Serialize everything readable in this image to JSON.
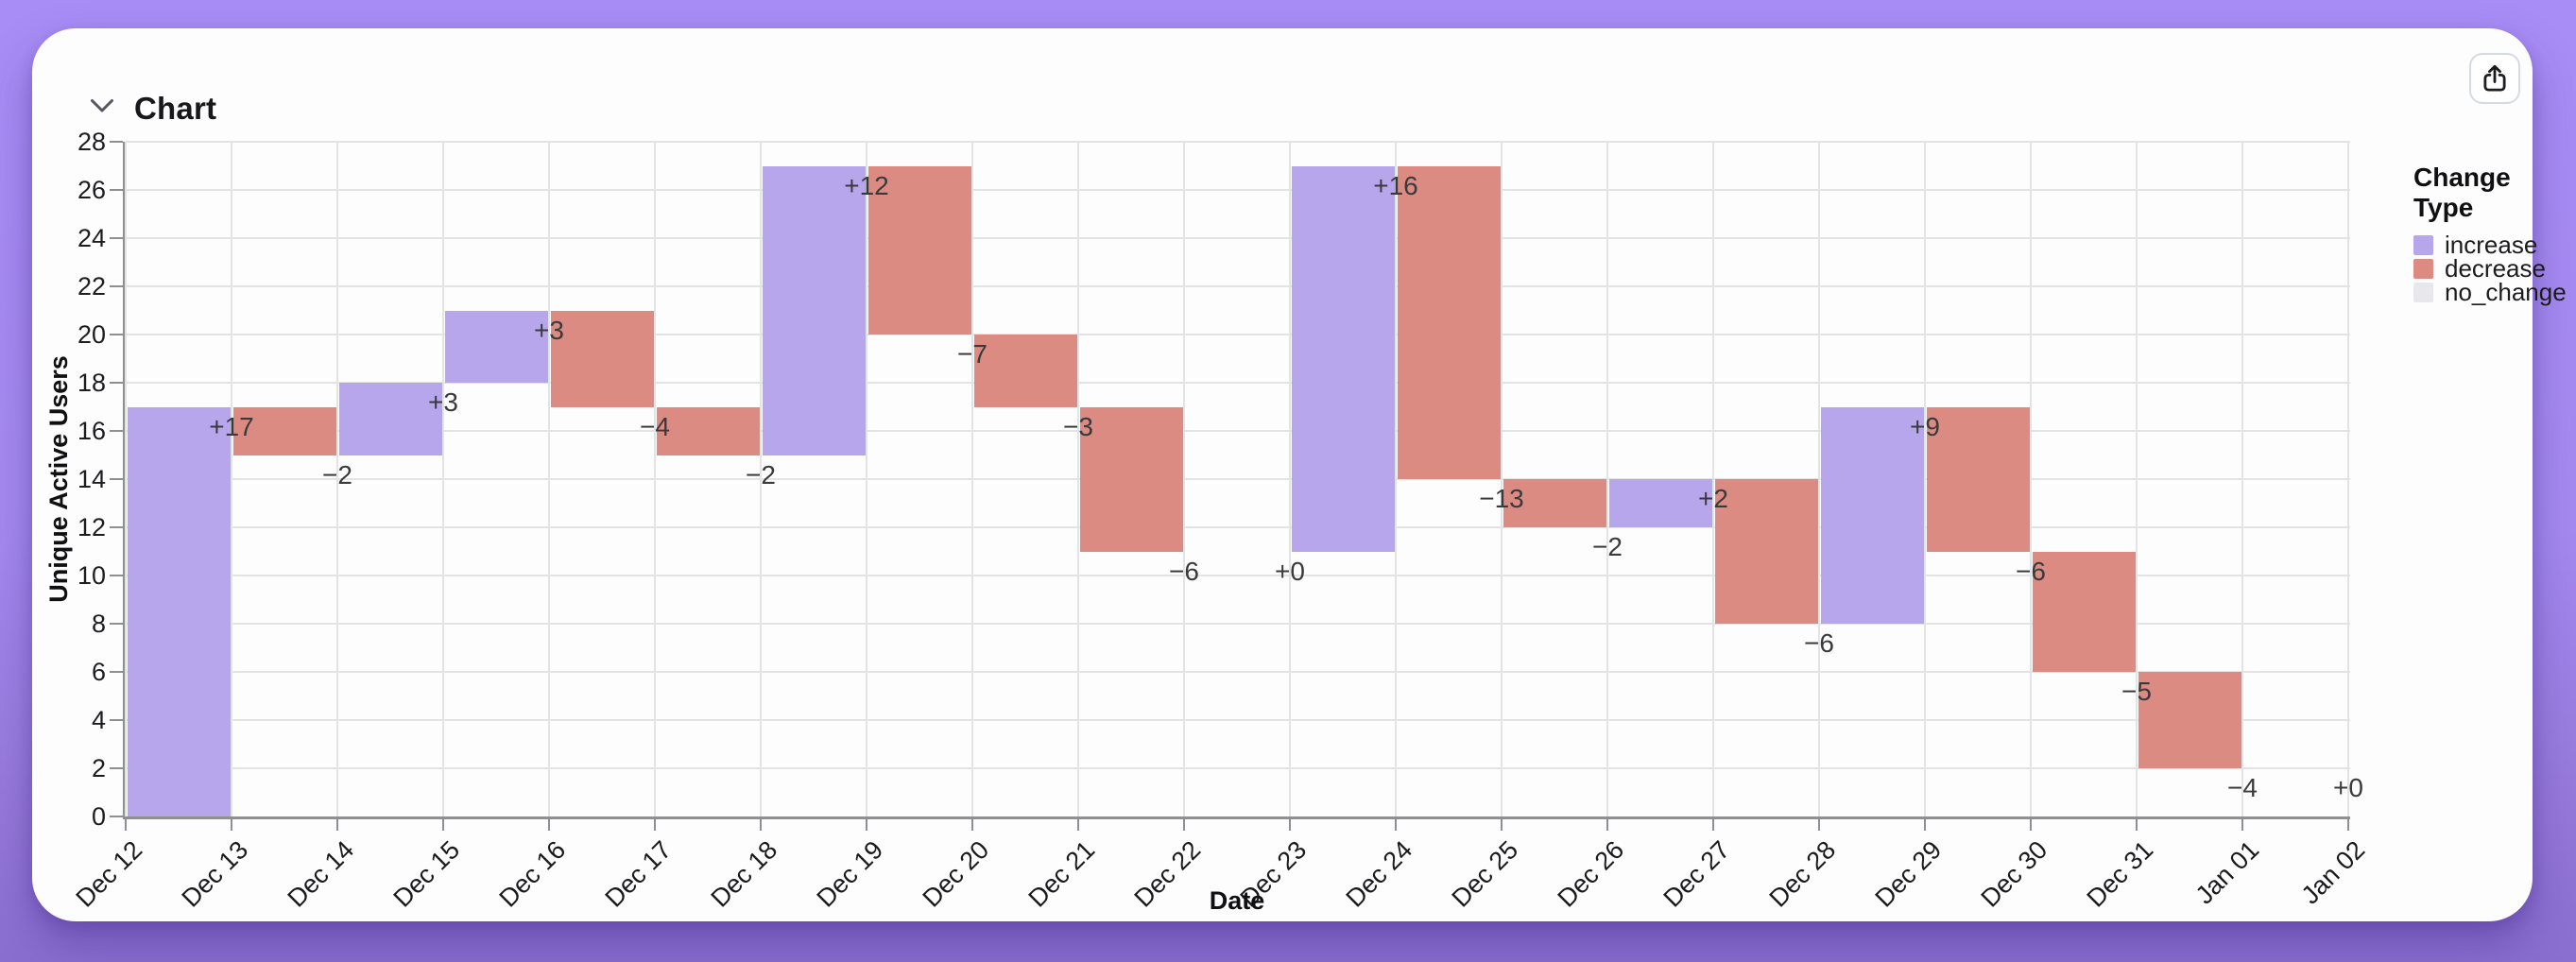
{
  "header": {
    "title": "Chart"
  },
  "chart_data": {
    "type": "bar",
    "subtype": "waterfall",
    "title": "",
    "xlabel": "Date",
    "ylabel": "Unique Active Users",
    "ylim": [
      0,
      28
    ],
    "ytick_step": 2,
    "grid": true,
    "x_ticks": [
      "Dec 12",
      "Dec 13",
      "Dec 14",
      "Dec 15",
      "Dec 16",
      "Dec 17",
      "Dec 18",
      "Dec 19",
      "Dec 20",
      "Dec 21",
      "Dec 22",
      "Dec 23",
      "Dec 24",
      "Dec 25",
      "Dec 26",
      "Dec 27",
      "Dec 28",
      "Dec 29",
      "Dec 30",
      "Dec 31",
      "Jan 01",
      "Jan 02"
    ],
    "colors": {
      "increase": "#b8a6ed",
      "decrease": "#dc8b82",
      "no_change": "#e8e8ec"
    },
    "legend": {
      "title": "Change Type",
      "position": "right",
      "entries": [
        {
          "label": "increase",
          "color": "#b8a6ed"
        },
        {
          "label": "decrease",
          "color": "#dc8b82"
        },
        {
          "label": "no_change",
          "color": "#e8e8ec"
        }
      ]
    },
    "bars": [
      {
        "date": "Dec 12",
        "label": "+17",
        "change": 17,
        "start": 0,
        "end": 17,
        "type": "increase"
      },
      {
        "date": "Dec 13",
        "label": "−2",
        "change": -2,
        "start": 17,
        "end": 15,
        "type": "decrease"
      },
      {
        "date": "Dec 14",
        "label": "+3",
        "change": 3,
        "start": 15,
        "end": 18,
        "type": "increase"
      },
      {
        "date": "Dec 15",
        "label": "+3",
        "change": 3,
        "start": 18,
        "end": 21,
        "type": "increase"
      },
      {
        "date": "Dec 16",
        "label": "−4",
        "change": -4,
        "start": 21,
        "end": 17,
        "type": "decrease"
      },
      {
        "date": "Dec 17",
        "label": "−2",
        "change": -2,
        "start": 17,
        "end": 15,
        "type": "decrease"
      },
      {
        "date": "Dec 18",
        "label": "+12",
        "change": 12,
        "start": 15,
        "end": 27,
        "type": "increase"
      },
      {
        "date": "Dec 19",
        "label": "−7",
        "change": -7,
        "start": 27,
        "end": 20,
        "type": "decrease"
      },
      {
        "date": "Dec 20",
        "label": "−3",
        "change": -3,
        "start": 20,
        "end": 17,
        "type": "decrease"
      },
      {
        "date": "Dec 21",
        "label": "−6",
        "change": -6,
        "start": 17,
        "end": 11,
        "type": "decrease"
      },
      {
        "date": "Dec 22",
        "label": "+0",
        "change": 0,
        "start": 11,
        "end": 11,
        "type": "no_change"
      },
      {
        "date": "Dec 23",
        "label": "+16",
        "change": 16,
        "start": 11,
        "end": 27,
        "type": "increase"
      },
      {
        "date": "Dec 24",
        "label": "−13",
        "change": -13,
        "start": 27,
        "end": 14,
        "type": "decrease"
      },
      {
        "date": "Dec 25",
        "label": "−2",
        "change": -2,
        "start": 14,
        "end": 12,
        "type": "decrease"
      },
      {
        "date": "Dec 26",
        "label": "+2",
        "change": 2,
        "start": 12,
        "end": 14,
        "type": "increase"
      },
      {
        "date": "Dec 27",
        "label": "−6",
        "change": -6,
        "start": 14,
        "end": 8,
        "type": "decrease"
      },
      {
        "date": "Dec 28",
        "label": "+9",
        "change": 9,
        "start": 8,
        "end": 17,
        "type": "increase"
      },
      {
        "date": "Dec 29",
        "label": "−6",
        "change": -6,
        "start": 17,
        "end": 11,
        "type": "decrease"
      },
      {
        "date": "Dec 30",
        "label": "−5",
        "change": -5,
        "start": 11,
        "end": 6,
        "type": "decrease"
      },
      {
        "date": "Dec 31",
        "label": "−4",
        "change": -4,
        "start": 6,
        "end": 2,
        "type": "decrease"
      },
      {
        "date": "Jan 01",
        "label": "+0",
        "change": 0,
        "start": 2,
        "end": 2,
        "type": "no_change"
      }
    ]
  }
}
